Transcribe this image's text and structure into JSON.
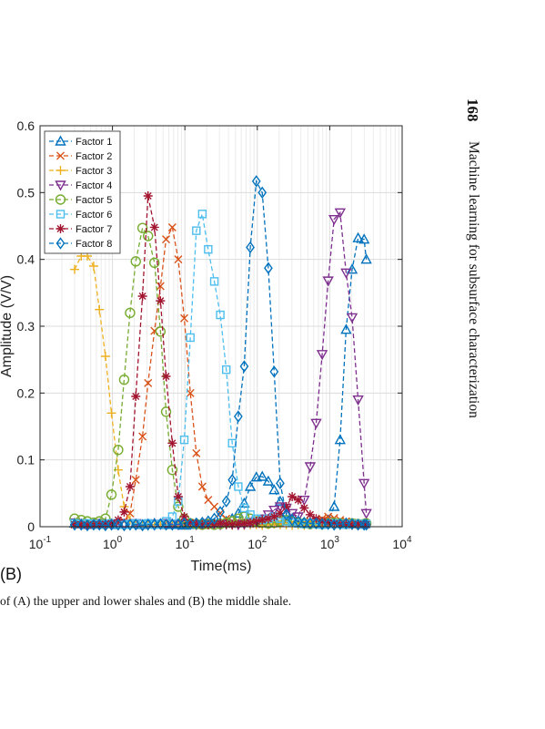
{
  "page": {
    "page_number": "168",
    "running_head": "Machine learning for subsurface characterization",
    "panel_label": "(B)",
    "caption": "of (A) the upper and lower shales and (B) the middle shale."
  },
  "chart_data": {
    "type": "line",
    "title": "",
    "xlabel": "Time(ms)",
    "ylabel": "Amplitude (V/V)",
    "x_scale": "log",
    "xlim": [
      0.1,
      10000
    ],
    "ylim": [
      0,
      0.6
    ],
    "x_ticks": [
      0.1,
      1,
      10,
      100,
      1000,
      10000
    ],
    "x_tick_labels": [
      {
        "base": "10",
        "exp": "-1"
      },
      {
        "base": "10",
        "exp": "0"
      },
      {
        "base": "10",
        "exp": "1"
      },
      {
        "base": "10",
        "exp": "2"
      },
      {
        "base": "10",
        "exp": "3"
      },
      {
        "base": "10",
        "exp": "4"
      }
    ],
    "y_ticks": [
      0,
      0.1,
      0.2,
      0.3,
      0.4,
      0.5,
      0.6
    ],
    "y_tick_labels": [
      "0",
      "0.1",
      "0.2",
      "0.3",
      "0.4",
      "0.5",
      "0.6"
    ],
    "grid": true,
    "legend_position": "top-left",
    "x": [
      0.3,
      0.37,
      0.45,
      0.55,
      0.66,
      0.8,
      0.97,
      1.2,
      1.45,
      1.75,
      2.1,
      2.6,
      3.1,
      3.8,
      4.6,
      5.5,
      6.7,
      8.1,
      9.8,
      11.9,
      14.4,
      17.4,
      21,
      25.5,
      30.8,
      37.3,
      45,
      54.6,
      66,
      80,
      97,
      117,
      142,
      171,
      207,
      251,
      303,
      367,
      444,
      537,
      650,
      786,
      951,
      1150,
      1392,
      1684,
      2037,
      2465,
      2982,
      3200
    ],
    "series": [
      {
        "name": "Factor 1",
        "color": "#0072bd",
        "marker": "triangle-up",
        "values": [
          0.005,
          0.004,
          0.003,
          0.003,
          0.004,
          0.005,
          0.004,
          0.003,
          0.004,
          0.005,
          0.004,
          0.003,
          0.004,
          0.005,
          0.004,
          0.003,
          0.004,
          0.003,
          0.002,
          0.003,
          0.004,
          0.003,
          0.004,
          0.005,
          0.006,
          0.008,
          0.012,
          0.02,
          0.035,
          0.06,
          0.074,
          0.075,
          0.068,
          0.055,
          0.038,
          0.02,
          0.012,
          0.008,
          0.006,
          0.005,
          0.005,
          0.006,
          0.01,
          0.03,
          0.13,
          0.295,
          0.385,
          0.432,
          0.43,
          0.4
        ]
      },
      {
        "name": "Factor 2",
        "color": "#d95319",
        "marker": "x",
        "values": [
          0.003,
          0.004,
          0.003,
          0.004,
          0.003,
          0.003,
          0.004,
          0.005,
          0.008,
          0.02,
          0.07,
          0.135,
          0.215,
          0.293,
          0.36,
          0.43,
          0.448,
          0.4,
          0.312,
          0.2,
          0.11,
          0.06,
          0.04,
          0.03,
          0.02,
          0.012,
          0.008,
          0.006,
          0.005,
          0.005,
          0.004,
          0.004,
          0.005,
          0.005,
          0.006,
          0.008,
          0.006,
          0.005,
          0.006,
          0.008,
          0.01,
          0.012,
          0.015,
          0.013,
          0.01,
          0.008,
          0.006,
          0.005,
          0.005,
          0.004
        ]
      },
      {
        "name": "Factor 3",
        "color": "#edb120",
        "marker": "plus",
        "values": [
          0.385,
          0.405,
          0.405,
          0.39,
          0.325,
          0.255,
          0.17,
          0.085,
          0.03,
          0.01,
          0.005,
          0.004,
          0.003,
          0.003,
          0.004,
          0.003,
          0.002,
          0.003,
          0.002,
          0.003,
          0.003,
          0.002,
          0.003,
          0.002,
          0.003,
          0.003,
          0.002,
          0.003,
          0.002,
          0.003,
          0.003,
          0.002,
          0.003,
          0.004,
          0.003,
          0.003,
          0.002,
          0.003,
          0.002,
          0.003,
          0.003,
          0.002,
          0.003,
          0.003,
          0.002,
          0.003,
          0.002,
          0.003,
          0.003,
          0.002
        ]
      },
      {
        "name": "Factor 4",
        "color": "#7e2f8e",
        "marker": "triangle-down",
        "values": [
          0.006,
          0.005,
          0.004,
          0.004,
          0.005,
          0.004,
          0.004,
          0.005,
          0.004,
          0.004,
          0.005,
          0.004,
          0.004,
          0.003,
          0.004,
          0.005,
          0.004,
          0.003,
          0.004,
          0.004,
          0.003,
          0.004,
          0.005,
          0.004,
          0.003,
          0.004,
          0.004,
          0.003,
          0.004,
          0.006,
          0.008,
          0.012,
          0.018,
          0.025,
          0.03,
          0.028,
          0.02,
          0.015,
          0.04,
          0.09,
          0.155,
          0.258,
          0.368,
          0.46,
          0.47,
          0.38,
          0.313,
          0.19,
          0.065,
          0.02
        ]
      },
      {
        "name": "Factor 5",
        "color": "#77ac30",
        "marker": "circle",
        "values": [
          0.012,
          0.01,
          0.008,
          0.006,
          0.008,
          0.012,
          0.048,
          0.115,
          0.22,
          0.32,
          0.397,
          0.447,
          0.435,
          0.395,
          0.292,
          0.172,
          0.085,
          0.03,
          0.012,
          0.005,
          0.004,
          0.003,
          0.004,
          0.003,
          0.004,
          0.006,
          0.008,
          0.012,
          0.015,
          0.012,
          0.008,
          0.006,
          0.005,
          0.006,
          0.008,
          0.01,
          0.008,
          0.006,
          0.005,
          0.004,
          0.005,
          0.004,
          0.005,
          0.006,
          0.005,
          0.004,
          0.005,
          0.004,
          0.004,
          0.005
        ]
      },
      {
        "name": "Factor 6",
        "color": "#4dbeee",
        "marker": "square",
        "values": [
          0.005,
          0.004,
          0.005,
          0.004,
          0.003,
          0.004,
          0.005,
          0.004,
          0.003,
          0.004,
          0.005,
          0.004,
          0.005,
          0.003,
          0.004,
          0.008,
          0.015,
          0.038,
          0.13,
          0.283,
          0.443,
          0.468,
          0.415,
          0.367,
          0.317,
          0.235,
          0.125,
          0.06,
          0.028,
          0.018,
          0.012,
          0.01,
          0.012,
          0.015,
          0.012,
          0.008,
          0.006,
          0.005,
          0.004,
          0.005,
          0.004,
          0.003,
          0.004,
          0.005,
          0.004,
          0.003,
          0.004,
          0.004,
          0.003,
          0.004
        ]
      },
      {
        "name": "Factor 7",
        "color": "#a2142f",
        "marker": "asterisk",
        "values": [
          0.003,
          0.003,
          0.002,
          0.003,
          0.003,
          0.004,
          0.005,
          0.01,
          0.022,
          0.06,
          0.195,
          0.345,
          0.495,
          0.448,
          0.338,
          0.225,
          0.125,
          0.045,
          0.015,
          0.006,
          0.004,
          0.003,
          0.003,
          0.004,
          0.005,
          0.004,
          0.003,
          0.004,
          0.005,
          0.006,
          0.008,
          0.01,
          0.012,
          0.015,
          0.02,
          0.03,
          0.045,
          0.04,
          0.028,
          0.018,
          0.012,
          0.008,
          0.006,
          0.005,
          0.004,
          0.004,
          0.003,
          0.004,
          0.003,
          0.003
        ]
      },
      {
        "name": "Factor 8",
        "color": "#0072bd",
        "marker": "diamond",
        "values": [
          0.003,
          0.003,
          0.002,
          0.003,
          0.003,
          0.002,
          0.003,
          0.003,
          0.002,
          0.003,
          0.003,
          0.002,
          0.003,
          0.003,
          0.004,
          0.003,
          0.003,
          0.004,
          0.005,
          0.004,
          0.005,
          0.006,
          0.008,
          0.012,
          0.022,
          0.038,
          0.07,
          0.165,
          0.24,
          0.418,
          0.517,
          0.5,
          0.387,
          0.232,
          0.065,
          0.018,
          0.01,
          0.008,
          0.006,
          0.005,
          0.005,
          0.004,
          0.004,
          0.003,
          0.004,
          0.005,
          0.004,
          0.003,
          0.003,
          0.003
        ]
      }
    ]
  }
}
